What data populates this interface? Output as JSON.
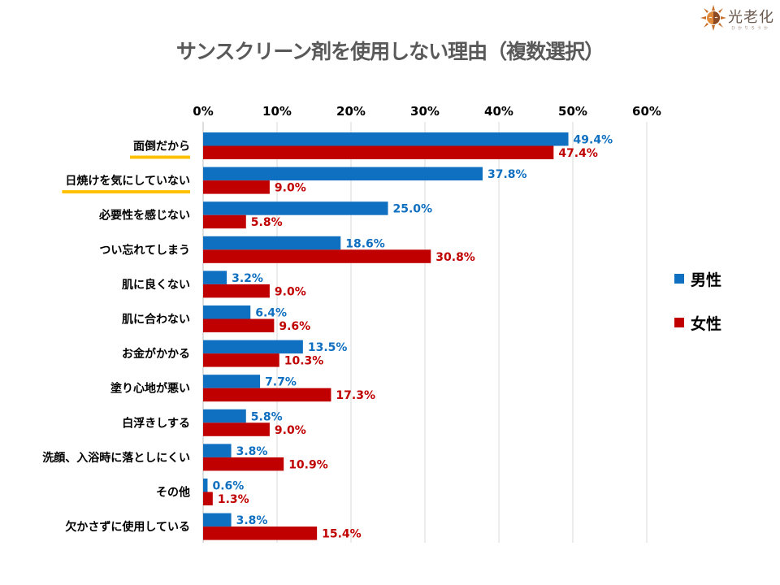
{
  "logo": {
    "text": "光老化",
    "subtext": "ひかりろうか",
    "icon": "sun-face-icon"
  },
  "colors": {
    "male": "#0F6FC0",
    "female": "#C00000",
    "highlight": "#FFC000",
    "grid": "#D9D9D9"
  },
  "chart_data": {
    "type": "bar",
    "orientation": "horizontal",
    "title": "サンスクリーン剤を使用しない理由（複数選択）",
    "xlabel": "",
    "ylabel": "",
    "xlim": [
      0,
      60
    ],
    "x_ticks": [
      "0%",
      "10%",
      "20%",
      "30%",
      "40%",
      "50%",
      "60%"
    ],
    "x_tick_values": [
      0,
      10,
      20,
      30,
      40,
      50,
      60
    ],
    "grid": true,
    "legend_position": "right",
    "categories": [
      "面倒だから",
      "日焼けを気にしていない",
      "必要性を感じない",
      "つい忘れてしまう",
      "肌に良くない",
      "肌に合わない",
      "お金がかかる",
      "塗り心地が悪い",
      "白浮きしする",
      "洗顔、入浴時に落としにくい",
      "その他",
      "欠かさずに使用している"
    ],
    "highlighted_categories": [
      "面倒だから",
      "日焼けを気にしていない"
    ],
    "series": [
      {
        "name": "男性",
        "color": "#0F6FC0",
        "values": [
          49.4,
          37.8,
          25.0,
          18.6,
          3.2,
          6.4,
          13.5,
          7.7,
          5.8,
          3.8,
          0.6,
          3.8
        ],
        "labels": [
          "49.4%",
          "37.8%",
          "25.0%",
          "18.6%",
          "3.2%",
          "6.4%",
          "13.5%",
          "7.7%",
          "5.8%",
          "3.8%",
          "0.6%",
          "3.8%"
        ]
      },
      {
        "name": "女性",
        "color": "#C00000",
        "values": [
          47.4,
          9.0,
          5.8,
          30.8,
          9.0,
          9.6,
          10.3,
          17.3,
          9.0,
          10.9,
          1.3,
          15.4
        ],
        "labels": [
          "47.4%",
          "9.0%",
          "5.8%",
          "30.8%",
          "9.0%",
          "9.6%",
          "10.3%",
          "17.3%",
          "9.0%",
          "10.9%",
          "1.3%",
          "15.4%"
        ]
      }
    ]
  }
}
